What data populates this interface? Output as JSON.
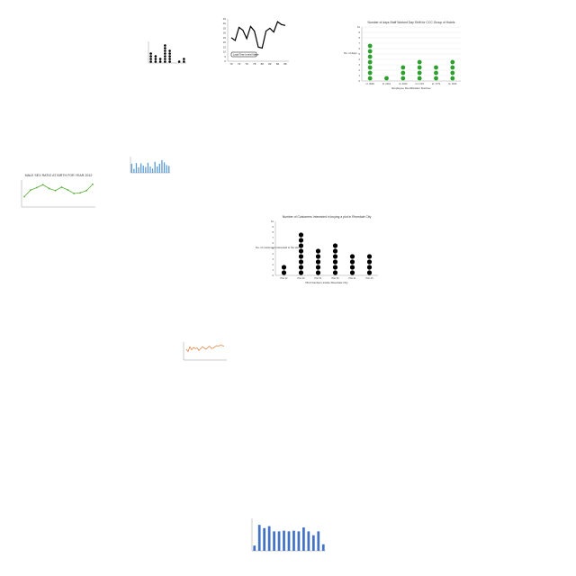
{
  "chart_data": [
    {
      "type": "scatter",
      "title": "",
      "xlabel": "",
      "ylabel": "",
      "categories": [
        "",
        "",
        "",
        "",
        "",
        "",
        "",
        ""
      ],
      "values": [
        4,
        3,
        2,
        7,
        5,
        0,
        1,
        2
      ],
      "ylim": [
        0,
        8
      ],
      "marker_color": "#000000"
    },
    {
      "type": "line",
      "title": "",
      "xlabel": "",
      "ylabel": "",
      "x": [
        72,
        73,
        74,
        75,
        76,
        77,
        78,
        79,
        80,
        81,
        82,
        83,
        84,
        85,
        86
      ],
      "values": [
        25,
        22,
        36,
        33,
        24,
        37,
        32,
        15,
        14,
        32,
        35,
        31,
        42,
        39,
        38
      ],
      "x_ticks": [
        "72",
        "74",
        "76",
        "78",
        "80",
        "82",
        "84",
        "86"
      ],
      "y_ticks": [
        "0",
        "5",
        "10",
        "15",
        "20",
        "25",
        "30",
        "35",
        "40",
        "45"
      ],
      "ylim": [
        0,
        45
      ],
      "legend": "Local Time in envi Name",
      "legend_position": "bottom-left",
      "line_color": "#000000"
    },
    {
      "type": "scatter",
      "title": "Number of days Staff Worked Day Shift for CCC Group of Hotels",
      "xlabel": "Employee Identification Number",
      "ylabel": "No. of days",
      "categories": [
        "Id. 0006",
        "Id. 0012",
        "Id. 0020",
        "Id. 1704",
        "Id. 1779",
        "Id. 1816"
      ],
      "values": [
        7,
        1,
        3,
        4,
        3,
        4
      ],
      "y_ticks": [
        "0",
        "1",
        "2",
        "3",
        "4",
        "5",
        "6",
        "7",
        "8",
        "9",
        "10"
      ],
      "ylim": [
        0,
        10
      ],
      "marker_color": "#2ca02c",
      "grid": true
    },
    {
      "type": "bar",
      "title": "",
      "xlabel": "",
      "ylabel": "",
      "categories": [
        "",
        "",
        "",
        "",
        "",
        "",
        "",
        "",
        "",
        "",
        "",
        "",
        "",
        "",
        "",
        "",
        ""
      ],
      "values": [
        28,
        12,
        30,
        17,
        29,
        22,
        18,
        31,
        19,
        13,
        34,
        20,
        28,
        39,
        32,
        24,
        21
      ],
      "ylim": [
        0,
        50
      ],
      "bar_color": "#5b9bd5"
    },
    {
      "type": "line",
      "title": "MALE SEX RATIO AT BIRTH FOR YEAR 2012",
      "xlabel": "",
      "ylabel": "",
      "categories": [
        "",
        "",
        "",
        "",
        "",
        "",
        "",
        "",
        "",
        "",
        "",
        ""
      ],
      "values": [
        104.6,
        107.5,
        108.6,
        109.9,
        108.2,
        107.3,
        108.8,
        107.6,
        106.0,
        106.3,
        107.3,
        110.1
      ],
      "ylim": [
        100,
        112
      ],
      "line_color": "#5aae3a"
    },
    {
      "type": "scatter",
      "title": "Number of Customers Interested in buying a plot in Riverdale City",
      "xlabel": "Plot Numbers inside Riverdale City",
      "ylabel": "No. of customers interested in the plot",
      "categories": [
        "Plot 12",
        "Plot 20",
        "Plot 31",
        "Plot 40",
        "Plot 41",
        "Plot 43"
      ],
      "values": [
        2,
        8,
        5,
        6,
        4,
        4
      ],
      "y_ticks": [
        "0",
        "1",
        "2",
        "3",
        "4",
        "5",
        "6",
        "7",
        "8",
        "9",
        "10"
      ],
      "ylim": [
        0,
        10
      ],
      "marker_color": "#000000"
    },
    {
      "type": "line",
      "title": "",
      "xlabel": "",
      "ylabel": "",
      "categories": [
        "",
        "",
        "",
        "",
        "",
        "",
        "",
        "",
        "",
        "",
        "",
        "",
        "",
        "",
        "",
        "",
        "",
        "",
        "",
        "",
        "",
        ""
      ],
      "values": [
        48,
        44,
        52,
        47,
        51,
        49,
        50,
        46,
        49,
        52,
        50,
        48,
        51,
        53,
        49,
        50,
        52,
        54,
        53,
        55,
        54,
        53
      ],
      "ylim": [
        30,
        60
      ],
      "line_color": "#e07b39"
    },
    {
      "type": "bar",
      "title": "",
      "xlabel": "",
      "ylabel": "",
      "categories": [
        "",
        "",
        "",
        "",
        "",
        "",
        "",
        "",
        "",
        "",
        "",
        "",
        "",
        "",
        ""
      ],
      "values": [
        8,
        40,
        35,
        38,
        30,
        30,
        31,
        30,
        31,
        30,
        36,
        30,
        24,
        30,
        10
      ],
      "ylim": [
        0,
        50
      ],
      "bar_color": "#4472c4"
    }
  ]
}
